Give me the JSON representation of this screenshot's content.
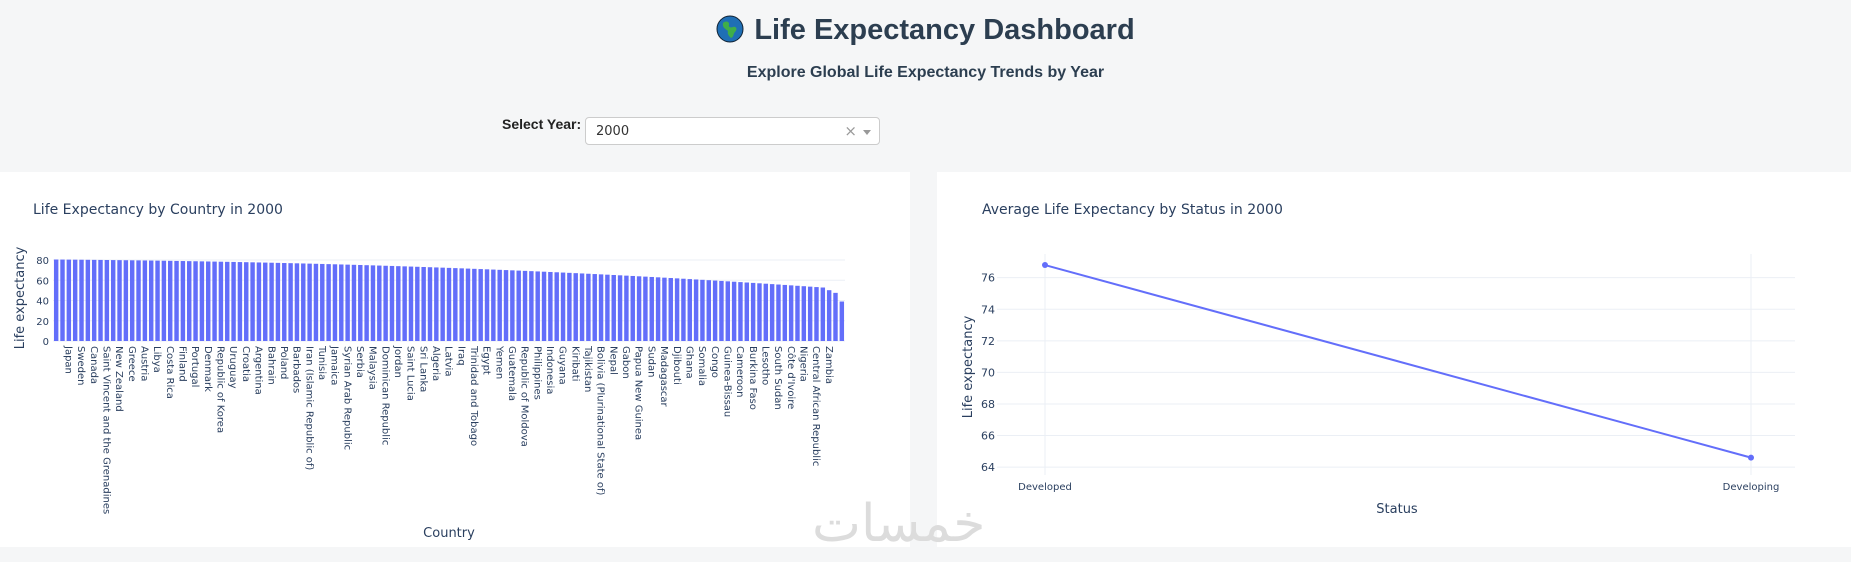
{
  "header": {
    "title": "Life Expectancy Dashboard",
    "subtitle": "Explore Global Life Expectancy Trends by Year",
    "globe_icon": "globe-icon"
  },
  "year_selector": {
    "label": "Select Year:",
    "value": "2000",
    "clear_icon": "close-icon",
    "dropdown_icon": "chevron-down-icon"
  },
  "watermark": "خمسات",
  "colors": {
    "accent": "#636efa",
    "text": "#2a3f5f",
    "grid": "#ebeff5"
  },
  "chart_data": [
    {
      "type": "bar",
      "title": "Life Expectancy by Country in 2000",
      "xlabel": "Country",
      "ylabel": "Life expectancy",
      "ylim": [
        0,
        80
      ],
      "yticks": [
        0,
        20,
        40,
        60,
        80
      ],
      "grid": true,
      "tick_labels_shown": [
        "Japan",
        "Sweden",
        "Canada",
        "Saint Vincent and the Grenadines",
        "New Zealand",
        "Greece",
        "Austria",
        "Libya",
        "Costa Rica",
        "Finland",
        "Portugal",
        "Denmark",
        "Republic of Korea",
        "Uruguay",
        "Croatia",
        "Argentina",
        "Bahrain",
        "Poland",
        "Barbados",
        "Iran (Islamic Republic of)",
        "Tunisia",
        "Jamaica",
        "Syrian Arab Republic",
        "Serbia",
        "Malaysia",
        "Dominican Republic",
        "Jordan",
        "Saint Lucia",
        "Sri Lanka",
        "Algeria",
        "Latvia",
        "Iraq",
        "Trinidad and Tobago",
        "Egypt",
        "Yemen",
        "Guatemala",
        "Republic of Moldova",
        "Philippines",
        "Indonesia",
        "Guyana",
        "Kiribati",
        "Tajikistan",
        "Bolivia (Plurinational State of)",
        "Nepal",
        "Gabon",
        "Papua New Guinea",
        "Sudan",
        "Madagascar",
        "Djibouti",
        "Ghana",
        "Somalia",
        "Congo",
        "Guinea-Bissau",
        "Cameroon",
        "Burkina Faso",
        "Lesotho",
        "South Sudan",
        "Côte d'Ivoire",
        "Nigeria",
        "Central African Republic",
        "Zambia"
      ],
      "bar_count": 125,
      "value_max": 80.5,
      "value_min": 39
    },
    {
      "type": "line",
      "title": "Average Life Expectancy by Status in 2000",
      "xlabel": "Status",
      "ylabel": "Life expectancy",
      "categories": [
        "Developed",
        "Developing"
      ],
      "values": [
        76.8,
        64.6
      ],
      "ylim": [
        63.5,
        77.5
      ],
      "yticks": [
        64,
        66,
        68,
        70,
        72,
        74,
        76
      ],
      "grid": true
    }
  ]
}
